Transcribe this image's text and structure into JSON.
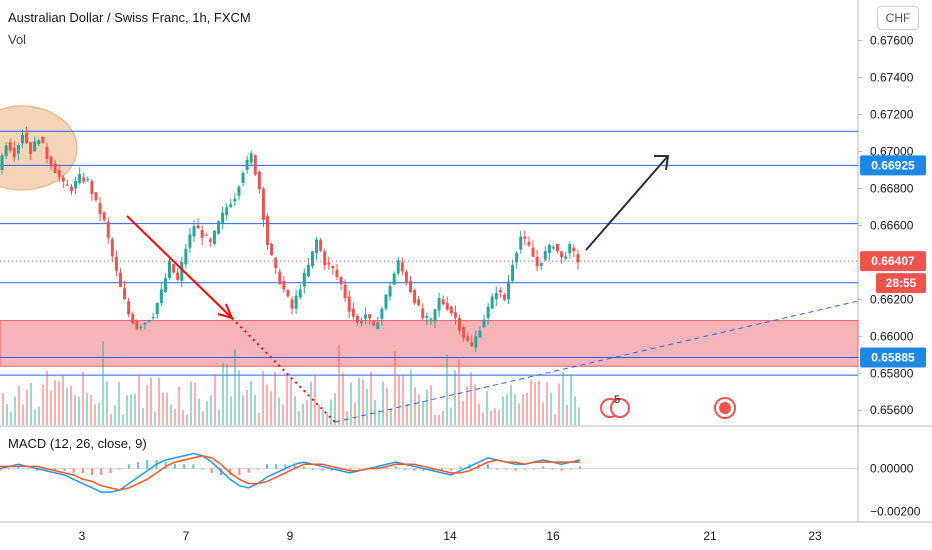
{
  "header": {
    "title": "Australian Dollar / Swiss Franc, 1h, FXCM",
    "volume_label": "Vol",
    "macd_label": "MACD (12, 26, close, 9)",
    "currency_button": "CHF"
  },
  "colors": {
    "up": "#26a69a",
    "down": "#ef5350",
    "hline": "#2962ff",
    "zone_fill": "#f7a8ad",
    "zone_edge": "#e35d6a",
    "macd": "#2196f3",
    "signal": "#ff5722",
    "ellipse": "#f4c9a6",
    "arrow_red": "#ff0000",
    "arrow_dark": "#2a2e39",
    "trend": "#2962ff",
    "price_badge": "#ef5350",
    "level_badge": "#1e88e5"
  },
  "chart_data": {
    "type": "candlestick",
    "symbol": "AUDCHF",
    "timeframe": "1h",
    "price_axis": {
      "ticks": [
        "0.67600",
        "0.67400",
        "0.67200",
        "0.67000",
        "0.66800",
        "0.66600",
        "0.66200",
        "0.66000",
        "0.65800",
        "0.65600"
      ],
      "range": [
        0.6552,
        0.6782
      ]
    },
    "macd_axis": {
      "ticks": [
        "0.00000",
        "−0.00200"
      ],
      "range": [
        -0.0024,
        0.0018
      ]
    },
    "time_axis": {
      "ticks": [
        "3",
        "7",
        "9",
        "14",
        "16",
        "21",
        "23"
      ]
    },
    "horizontal_levels": [
      0.6711,
      0.66925,
      0.6661,
      0.6629,
      0.65885,
      0.6579
    ],
    "support_zone": [
      0.65838,
      0.66085
    ],
    "last_price": "0.66407",
    "level_label": "0.66925",
    "support_label": "0.65885",
    "countdown": "28:55",
    "price_path": [
      0.669,
      0.6705,
      0.6699,
      0.671,
      0.67,
      0.6708,
      0.6697,
      0.669,
      0.6682,
      0.668,
      0.6686,
      0.6684,
      0.6672,
      0.6662,
      0.6643,
      0.6626,
      0.6612,
      0.6605,
      0.6608,
      0.6612,
      0.6624,
      0.6639,
      0.663,
      0.6648,
      0.666,
      0.6655,
      0.665,
      0.6661,
      0.667,
      0.6676,
      0.669,
      0.6698,
      0.668,
      0.665,
      0.6635,
      0.6625,
      0.6615,
      0.6627,
      0.6638,
      0.6652,
      0.664,
      0.6636,
      0.6628,
      0.6615,
      0.6607,
      0.6612,
      0.6604,
      0.6615,
      0.6628,
      0.664,
      0.663,
      0.662,
      0.661,
      0.6608,
      0.662,
      0.6616,
      0.661,
      0.66,
      0.6594,
      0.6605,
      0.6615,
      0.6625,
      0.662,
      0.664,
      0.6654,
      0.6648,
      0.6638,
      0.6645,
      0.665,
      0.6642,
      0.6648,
      0.6641
    ],
    "macd": [
      0.0,
      0.0001,
      0.0002,
      0.0001,
      0.0,
      -0.0001,
      -0.0002,
      -0.0003,
      -0.0005,
      -0.0007,
      -0.0009,
      -0.0011,
      -0.0011,
      -0.001,
      -0.0007,
      -0.0004,
      -0.0001,
      0.0002,
      0.0004,
      0.0005,
      0.0006,
      0.0007,
      0.0006,
      0.0003,
      -0.0001,
      -0.0005,
      -0.0008,
      -0.0009,
      -0.0007,
      -0.0004,
      -0.0002,
      0.0,
      0.0002,
      0.0003,
      0.0002,
      0.0001,
      0.0,
      -0.0001,
      -0.0002,
      -0.0001,
      0.0,
      0.0001,
      0.0002,
      0.0003,
      0.0002,
      0.0001,
      0.0,
      -0.0001,
      -0.0002,
      -0.0003,
      -0.0001,
      0.0001,
      0.0003,
      0.0005,
      0.0004,
      0.0003,
      0.0002,
      0.0002,
      0.0003,
      0.0004,
      0.0003,
      0.0002,
      0.0003,
      0.0004
    ],
    "signal": [
      0.0001,
      0.0001,
      0.0001,
      0.0001,
      0.0001,
      0.0,
      -0.0001,
      -0.0002,
      -0.0003,
      -0.0005,
      -0.0006,
      -0.0008,
      -0.0009,
      -0.001,
      -0.0009,
      -0.0007,
      -0.0005,
      -0.0002,
      0.0001,
      0.0003,
      0.0004,
      0.0005,
      0.0006,
      0.0005,
      0.0002,
      -0.0002,
      -0.0005,
      -0.0007,
      -0.0007,
      -0.0006,
      -0.0004,
      -0.0002,
      0.0,
      0.0002,
      0.0002,
      0.0002,
      0.0001,
      0.0,
      -0.0001,
      -0.0001,
      0.0,
      0.0,
      0.0001,
      0.0002,
      0.0002,
      0.0002,
      0.0001,
      0.0,
      -0.0001,
      -0.0002,
      -0.0002,
      -0.0001,
      0.0001,
      0.0003,
      0.0004,
      0.0003,
      0.0003,
      0.0002,
      0.0003,
      0.0003,
      0.0003,
      0.0003,
      0.0003,
      0.0003
    ],
    "event_badge_count": "5"
  }
}
